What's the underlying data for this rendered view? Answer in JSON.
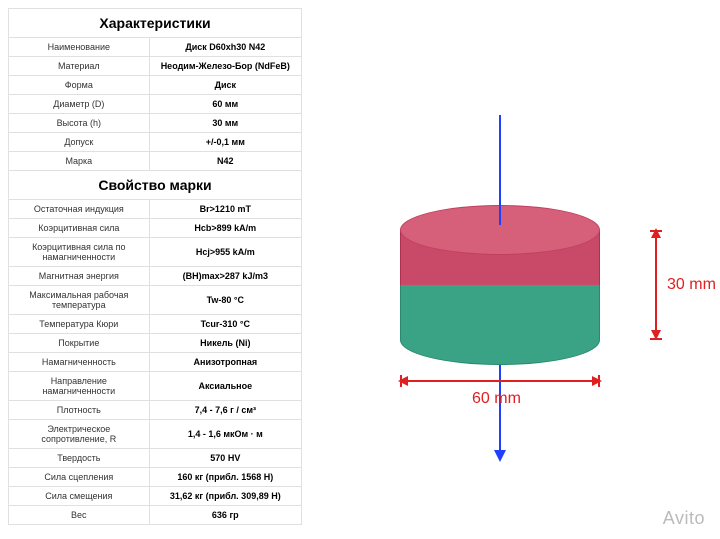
{
  "sections": [
    {
      "header": "Характеристики",
      "rows": [
        {
          "label": "Наименование",
          "value": "Диск D60xh30 N42"
        },
        {
          "label": "Материал",
          "value": "Неодим-Железо-Бор (NdFeB)"
        },
        {
          "label": "Форма",
          "value": "Диск"
        },
        {
          "label": "Диаметр (D)",
          "value": "60 мм"
        },
        {
          "label": "Высота (h)",
          "value": "30 мм"
        },
        {
          "label": "Допуск",
          "value": "+/-0,1 мм"
        },
        {
          "label": "Марка",
          "value": "N42"
        }
      ]
    },
    {
      "header": "Свойство марки",
      "rows": [
        {
          "label": "Остаточная индукция",
          "value": "Br>1210 mT"
        },
        {
          "label": "Коэрцитивная сила",
          "value": "Hcb>899 kA/m"
        },
        {
          "label": "Коэрцитивная сила по намагниченности",
          "value": "Hcj>955 kA/m"
        },
        {
          "label": "Магнитная энергия",
          "value": "(BH)max>287 kJ/m3"
        },
        {
          "label": "Максимальная рабочая температура",
          "value": "Tw-80 °C"
        },
        {
          "label": "Температура Кюри",
          "value": "Tcur-310 °C"
        },
        {
          "label": "Покрытие",
          "value": "Никель (Ni)"
        },
        {
          "label": "Намагниченность",
          "value": "Анизотропная"
        },
        {
          "label": "Направление намагниченности",
          "value": "Аксиальное"
        },
        {
          "label": "Плотность",
          "value": "7,4 - 7,6 г / см³"
        },
        {
          "label": "Электрическое сопротивление, R",
          "value": "1,4 - 1,6 мкОм · м"
        },
        {
          "label": "Твердость",
          "value": "570 HV"
        },
        {
          "label": "Сила сцепления",
          "value": "160 кг (прибл. 1568  Н)"
        },
        {
          "label": "Сила смещения",
          "value": "31,62 кг (прибл. 309,89 Н)"
        },
        {
          "label": "Вес",
          "value": "636 гр"
        }
      ]
    }
  ],
  "diagram": {
    "height_label": "30 mm",
    "width_label": "60 mm",
    "top_color": "#c94a68",
    "top_ellipse_color": "#d6607a",
    "bottom_color": "#3aa385",
    "arrow_color": "#2040ff",
    "dim_color": "#e02020"
  },
  "watermark": "Avito"
}
